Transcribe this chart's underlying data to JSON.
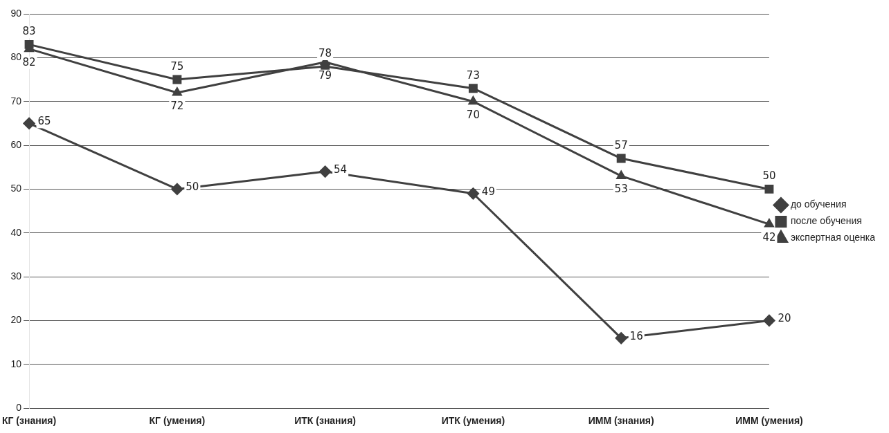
{
  "chart_data": {
    "type": "line",
    "categories": [
      "КГ (знания)",
      "КГ (умения)",
      "ИТК (знания)",
      "ИТК (умения)",
      "ИММ (знания)",
      "ИММ (умения)"
    ],
    "series": [
      {
        "name": "до обучения",
        "color": "#404040",
        "marker": "diamond",
        "values": [
          65,
          50,
          54,
          49,
          16,
          20
        ]
      },
      {
        "name": "после обучения",
        "color": "#404040",
        "marker": "square",
        "values": [
          83,
          75,
          78,
          73,
          57,
          50
        ]
      },
      {
        "name": "экспертная оценка",
        "color": "#404040",
        "marker": "triangle",
        "values": [
          82,
          72,
          79,
          70,
          53,
          42
        ]
      }
    ],
    "ylim": [
      0,
      90
    ],
    "yticks": [
      0,
      10,
      20,
      30,
      40,
      50,
      60,
      70,
      80,
      90
    ],
    "grid": "y",
    "legend": "right",
    "data_labels": true,
    "line_style": "solid"
  }
}
